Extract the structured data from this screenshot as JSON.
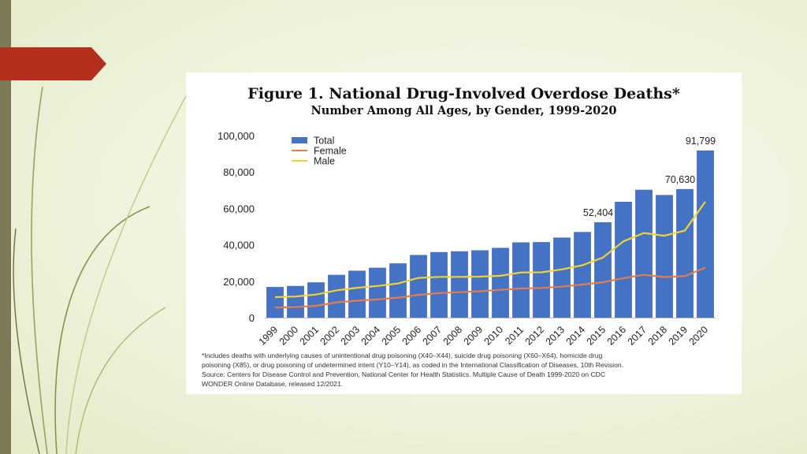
{
  "slide": {
    "accent_color": "#b5301c",
    "bar_color": "#7b7a55"
  },
  "figure": {
    "title": "Figure 1. National Drug-Involved Overdose Deaths*",
    "subtitle": "Number Among All Ages, by Gender, 1999-2020",
    "footnote_lines": [
      "*Includes deaths with underlying causes of unintentional drug poisoning (X40–X44), suicide drug poisoning (X60–X64), homicide drug",
      "poisoning (X85), or drug poisoning of undetermined intent (Y10–Y14), as coded in the International Classification of Diseases, 10th Revision.",
      "Source: Centers for Disease Control and Prevention, National Center for Health Statistics. Multiple Cause of Death 1999-2020 on CDC",
      "WONDER Online Database, released 12/2021."
    ]
  },
  "chart_data": {
    "type": "bar",
    "categories": [
      "1999",
      "2000",
      "2001",
      "2002",
      "2003",
      "2004",
      "2005",
      "2006",
      "2007",
      "2008",
      "2009",
      "2010",
      "2011",
      "2012",
      "2013",
      "2014",
      "2015",
      "2016",
      "2017",
      "2018",
      "2019",
      "2020"
    ],
    "series": [
      {
        "name": "Total",
        "type": "bar",
        "color": "#4472c4",
        "values": [
          16849,
          17415,
          19394,
          23518,
          25785,
          27424,
          29813,
          34425,
          36010,
          36450,
          37004,
          38329,
          41340,
          41502,
          43982,
          47055,
          52404,
          63632,
          70237,
          67367,
          70630,
          91799
        ]
      },
      {
        "name": "Female",
        "type": "line",
        "color": "#e57c4a",
        "values": [
          5591,
          5800,
          6500,
          8400,
          9300,
          10000,
          11000,
          12500,
          13500,
          14000,
          14500,
          15300,
          16000,
          16300,
          17000,
          18200,
          19400,
          21700,
          23500,
          22300,
          22800,
          27500
        ]
      },
      {
        "name": "Male",
        "type": "line",
        "color": "#f2d22e",
        "values": [
          11258,
          11600,
          12700,
          15000,
          16400,
          17400,
          18800,
          21800,
          22400,
          22400,
          22500,
          23000,
          24800,
          24900,
          26500,
          28800,
          33000,
          41900,
          46500,
          45000,
          47800,
          63700
        ]
      }
    ],
    "data_labels": [
      {
        "category": "2015",
        "text": "52,404"
      },
      {
        "category": "2019",
        "text": "70,630"
      },
      {
        "category": "2020",
        "text": "91,799"
      }
    ],
    "yticks": [
      "0",
      "20,000",
      "40,000",
      "60,000",
      "80,000",
      "100,000"
    ],
    "ylim": [
      0,
      100000
    ],
    "legend": "top-left",
    "grid": false
  }
}
